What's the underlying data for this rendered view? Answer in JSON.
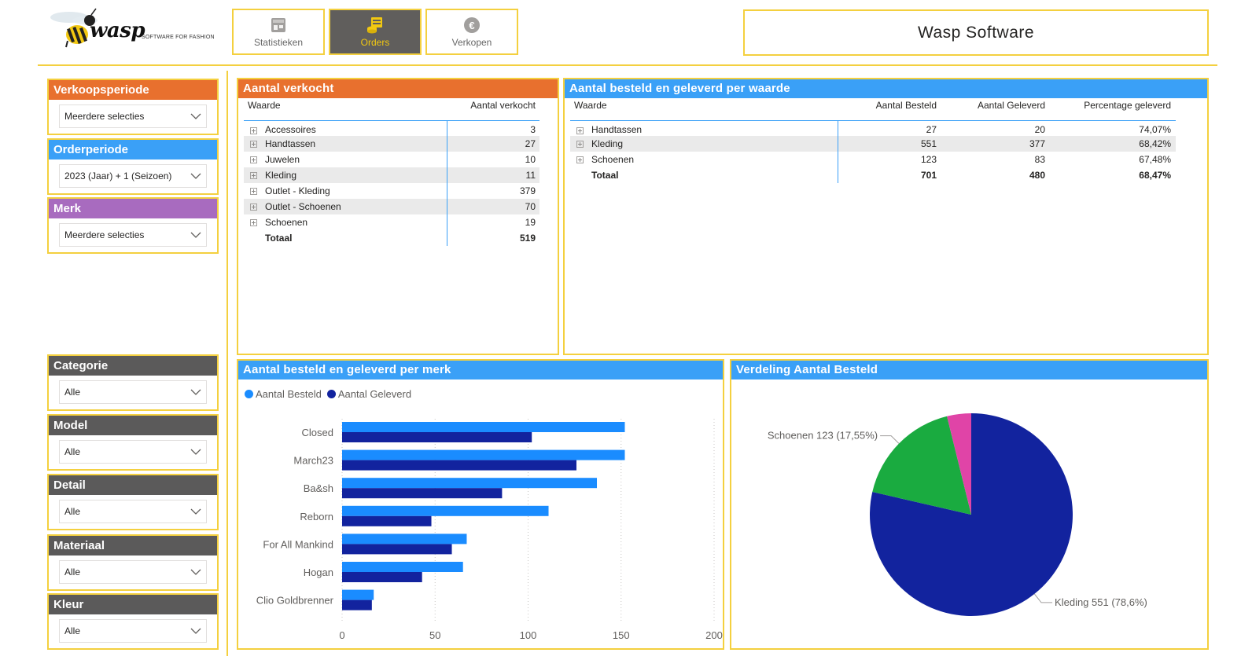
{
  "header": {
    "logo_word": "wasp",
    "logo_tagline": "SOFTWARE FOR FASHION",
    "nav": [
      {
        "label": "Statistieken",
        "active": false,
        "icon": "store-icon"
      },
      {
        "label": "Orders",
        "active": true,
        "icon": "orders-icon"
      },
      {
        "label": "Verkopen",
        "active": false,
        "icon": "euro-icon"
      }
    ],
    "brand": "Wasp Software"
  },
  "slicers": [
    {
      "title": "Verkoopsperiode",
      "value": "Meerdere selecties",
      "color": "#e8702e"
    },
    {
      "title": "Orderperiode",
      "value": "2023 (Jaar) + 1 (Seizoen)",
      "color": "#3aa0f7"
    },
    {
      "title": "Merk",
      "value": "Meerdere selecties",
      "color": "#a86bbf"
    },
    {
      "title": "Categorie",
      "value": "Alle",
      "color": "#5b5a5a"
    },
    {
      "title": "Model",
      "value": "Alle",
      "color": "#5b5a5a"
    },
    {
      "title": "Detail",
      "value": "Alle",
      "color": "#5b5a5a"
    },
    {
      "title": "Materiaal",
      "value": "Alle",
      "color": "#5b5a5a"
    },
    {
      "title": "Kleur",
      "value": "Alle",
      "color": "#5b5a5a"
    }
  ],
  "verkocht": {
    "title": "Aantal verkocht",
    "headers": [
      "Waarde",
      "Aantal verkocht"
    ],
    "rows": [
      {
        "name": "Accessoires",
        "value": "3"
      },
      {
        "name": "Handtassen",
        "value": "27"
      },
      {
        "name": "Juwelen",
        "value": "10"
      },
      {
        "name": "Kleding",
        "value": "11"
      },
      {
        "name": "Outlet - Kleding",
        "value": "379"
      },
      {
        "name": "Outlet - Schoenen",
        "value": "70"
      },
      {
        "name": "Schoenen",
        "value": "19"
      }
    ],
    "total": {
      "name": "Totaal",
      "value": "519"
    }
  },
  "besteld_waarde": {
    "title": "Aantal besteld en geleverd per waarde",
    "headers": [
      "Waarde",
      "Aantal Besteld",
      "Aantal Geleverd",
      "Percentage geleverd"
    ],
    "rows": [
      {
        "name": "Handtassen",
        "besteld": "27",
        "geleverd": "20",
        "pct": "74,07%"
      },
      {
        "name": "Kleding",
        "besteld": "551",
        "geleverd": "377",
        "pct": "68,42%"
      },
      {
        "name": "Schoenen",
        "besteld": "123",
        "geleverd": "83",
        "pct": "67,48%"
      }
    ],
    "total": {
      "name": "Totaal",
      "besteld": "701",
      "geleverd": "480",
      "pct": "68,47%"
    }
  },
  "bar_panel": {
    "title": "Aantal besteld en geleverd per merk"
  },
  "pie_panel": {
    "title": "Verdeling Aantal Besteld"
  },
  "chart_data": [
    {
      "type": "bar",
      "orientation": "horizontal",
      "categories": [
        "Closed",
        "March23",
        "Ba&sh",
        "Reborn",
        "For All Mankind",
        "Hogan",
        "Clio Goldbrenner"
      ],
      "series": [
        {
          "name": "Aantal Besteld",
          "color": "#1a8cff",
          "values": [
            152,
            152,
            137,
            111,
            67,
            65,
            17
          ]
        },
        {
          "name": "Aantal Geleverd",
          "color": "#12239e",
          "values": [
            102,
            126,
            86,
            48,
            59,
            43,
            16
          ]
        }
      ],
      "xlim": [
        0,
        200
      ],
      "xticks": [
        "0",
        "50",
        "100",
        "150",
        "200"
      ],
      "grid": true,
      "legend": "top-left"
    },
    {
      "type": "pie",
      "slices": [
        {
          "name": "Kleding",
          "value": 551,
          "label": "Kleding 551 (78,6%)",
          "color": "#12239e"
        },
        {
          "name": "Schoenen",
          "value": 123,
          "label": "Schoenen 123 (17,55%)",
          "color": "#1aab40"
        },
        {
          "name": "Handtassen",
          "value": 27,
          "label": "",
          "color": "#e044a7"
        }
      ]
    }
  ]
}
